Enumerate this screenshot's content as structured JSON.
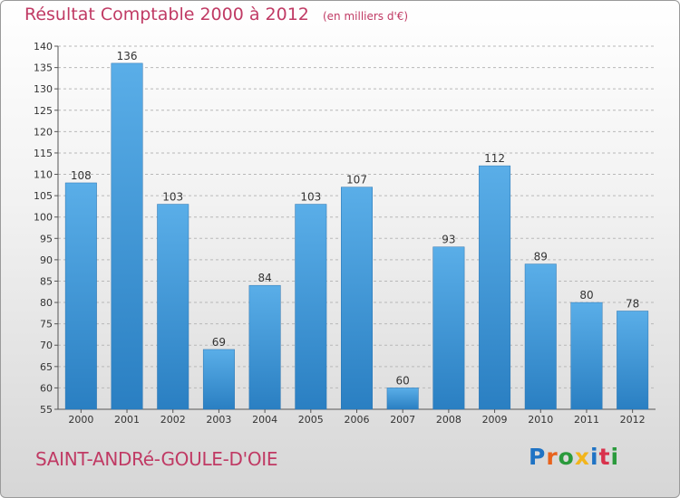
{
  "title": "Résultat Comptable 2000 à 2012",
  "subtitle": "(en milliers d'€)",
  "commune": "SAINT-ANDRé-GOULE-D'OIE",
  "logo": {
    "text": "Proxiti",
    "letter_colors": [
      "#1f73c4",
      "#e8631d",
      "#2a9a3c",
      "#f2b51c",
      "#1f73c4",
      "#d9324c",
      "#2a9a3c"
    ]
  },
  "colors": {
    "bar_top": "#5aaee8",
    "bar_bottom": "#2a7fc2",
    "title": "#c03a64",
    "grid": "#b8b8b8"
  },
  "chart_data": {
    "type": "bar",
    "categories": [
      "2000",
      "2001",
      "2002",
      "2003",
      "2004",
      "2005",
      "2006",
      "2007",
      "2008",
      "2009",
      "2010",
      "2011",
      "2012"
    ],
    "values": [
      108,
      136,
      103,
      69,
      84,
      103,
      107,
      60,
      93,
      112,
      89,
      80,
      78
    ],
    "ylim": [
      55,
      140
    ],
    "yticks": [
      55,
      60,
      65,
      70,
      75,
      80,
      85,
      90,
      95,
      100,
      105,
      110,
      115,
      120,
      125,
      130,
      135,
      140
    ],
    "grid": "dashed horizontal",
    "legend": "none"
  }
}
